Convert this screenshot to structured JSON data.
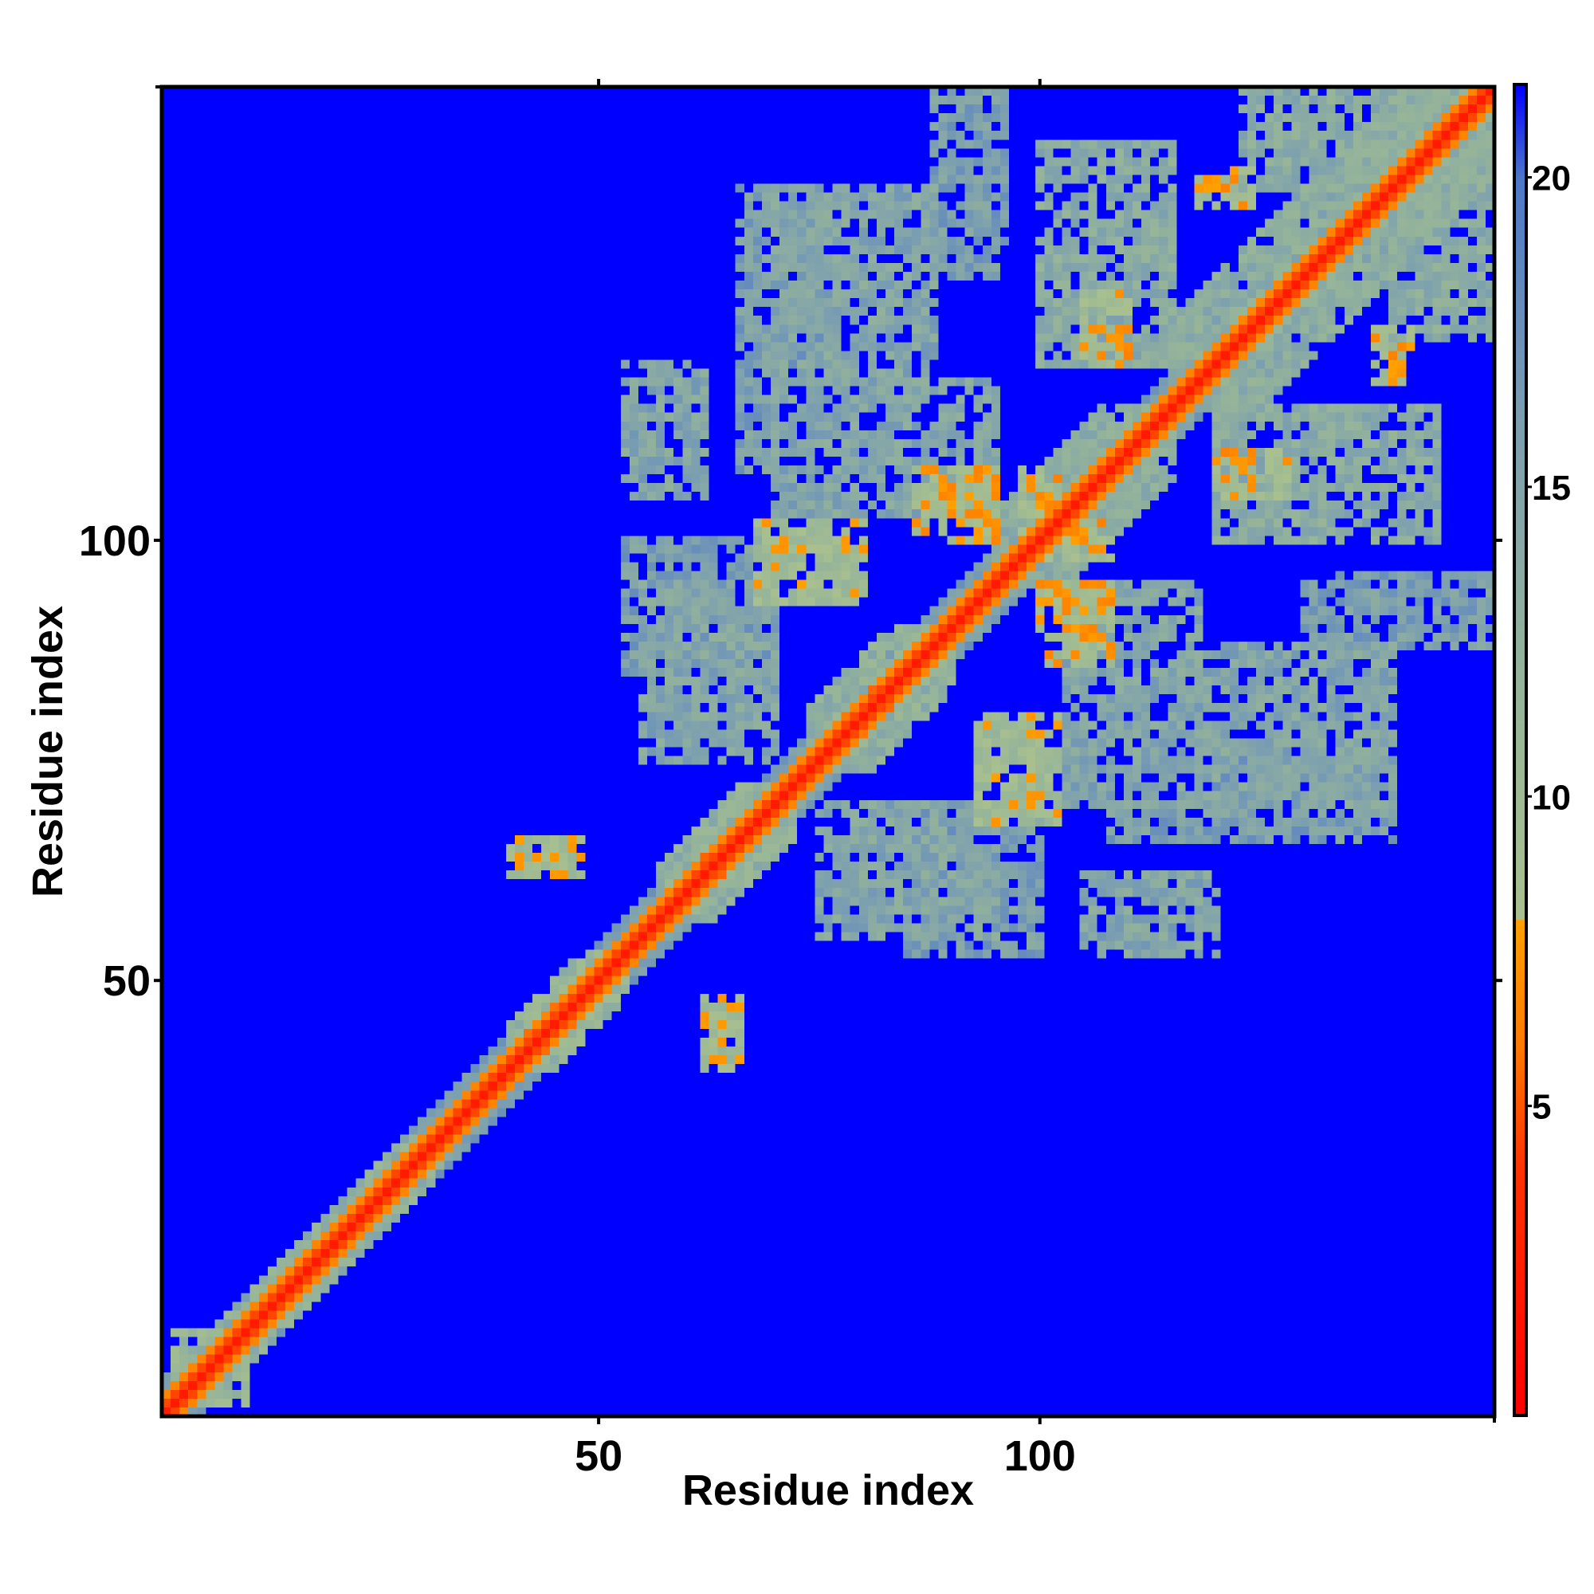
{
  "chart_data": {
    "type": "heatmap",
    "title": "",
    "xlabel": "Residue index",
    "ylabel": "Residue index",
    "n_residues": 151,
    "xlim": [
      0.5,
      151.5
    ],
    "ylim": [
      0.5,
      151.5
    ],
    "x_ticks": [
      50,
      100
    ],
    "y_ticks": [
      50,
      100
    ],
    "x_tick_labels": [
      "50",
      "100"
    ],
    "y_tick_labels": [
      "50",
      "100"
    ],
    "colorbar": {
      "range": [
        0,
        21.5
      ],
      "ticks": [
        5,
        10,
        15,
        20
      ],
      "tick_labels": [
        "5",
        "10",
        "15",
        "20"
      ],
      "stops": [
        {
          "value": 0,
          "color": "#ff0000"
        },
        {
          "value": 4,
          "color": "#ff3300"
        },
        {
          "value": 6,
          "color": "#ff7a00"
        },
        {
          "value": 8,
          "color": "#ffa000"
        },
        {
          "value": 8.01,
          "color": "#a9c08e"
        },
        {
          "value": 12,
          "color": "#94b39a"
        },
        {
          "value": 16,
          "color": "#7c9fb0"
        },
        {
          "value": 20,
          "color": "#4d78c8"
        },
        {
          "value": 21.5,
          "color": "#0000ff"
        }
      ]
    },
    "value_cutoff": 21,
    "background_color": "#0000ff",
    "diagonal_color": "#ff0000",
    "contact_blocks": [
      {
        "i": [
          2,
          10
        ],
        "j": [
          2,
          10
        ],
        "value": 11
      },
      {
        "i": [
          2,
          32
        ],
        "j": [
          2,
          32
        ],
        "value": 12,
        "band": 4
      },
      {
        "i": [
          40,
          53
        ],
        "j": [
          40,
          53
        ],
        "value": 11,
        "band": 5
      },
      {
        "i": [
          42,
          47
        ],
        "j": [
          42,
          47
        ],
        "value": 7,
        "band": 2
      },
      {
        "i": [
          57,
          72
        ],
        "j": [
          57,
          72
        ],
        "value": 12,
        "band": 6
      },
      {
        "i": [
          60,
          68
        ],
        "j": [
          60,
          68
        ],
        "value": 7,
        "band": 2
      },
      {
        "i": [
          74,
          90
        ],
        "j": [
          74,
          90
        ],
        "value": 12,
        "band": 7
      },
      {
        "i": [
          78,
          86
        ],
        "j": [
          78,
          86
        ],
        "value": 6,
        "band": 2
      },
      {
        "i": [
          95,
          115
        ],
        "j": [
          95,
          115
        ],
        "value": 13,
        "band": 8
      },
      {
        "i": [
          115,
          151
        ],
        "j": [
          115,
          151
        ],
        "value": 13,
        "band": 10
      },
      {
        "i": [
          62,
          66
        ],
        "j": [
          45,
          48
        ],
        "value": 9
      },
      {
        "i": [
          40,
          46
        ],
        "j": [
          62,
          66
        ],
        "value": 9
      },
      {
        "i": [
          68,
          80
        ],
        "j": [
          93,
          102
        ],
        "value": 9
      },
      {
        "i": [
          86,
          95
        ],
        "j": [
          100,
          108
        ],
        "value": 8
      },
      {
        "i": [
          55,
          70
        ],
        "j": [
          75,
          95
        ],
        "value": 14
      },
      {
        "i": [
          70,
          95
        ],
        "j": [
          103,
          118
        ],
        "value": 14
      },
      {
        "i": [
          70,
          88
        ],
        "j": [
          118,
          140
        ],
        "value": 14
      },
      {
        "i": [
          100,
          115
        ],
        "j": [
          120,
          145
        ],
        "value": 13
      },
      {
        "i": [
          53,
          70
        ],
        "j": [
          85,
          100
        ],
        "value": 15
      },
      {
        "i": [
          105,
          120
        ],
        "j": [
          53,
          62
        ],
        "value": 14
      },
      {
        "i": [
          108,
          120
        ],
        "j": [
          66,
          70
        ],
        "value": 15
      },
      {
        "i": [
          120,
          140
        ],
        "j": [
          66,
          75
        ],
        "value": 15
      },
      {
        "i": [
          100,
          108
        ],
        "j": [
          98,
          102
        ],
        "value": 8
      },
      {
        "i": [
          120,
          128
        ],
        "j": [
          105,
          110
        ],
        "value": 8
      },
      {
        "i": [
          138,
          142
        ],
        "j": [
          118,
          124
        ],
        "value": 8
      },
      {
        "i": [
          123,
          151
        ],
        "j": [
          140,
          151
        ],
        "value": 13
      },
      {
        "i": [
          88,
          96
        ],
        "j": [
          130,
          151
        ],
        "value": 15
      }
    ]
  }
}
